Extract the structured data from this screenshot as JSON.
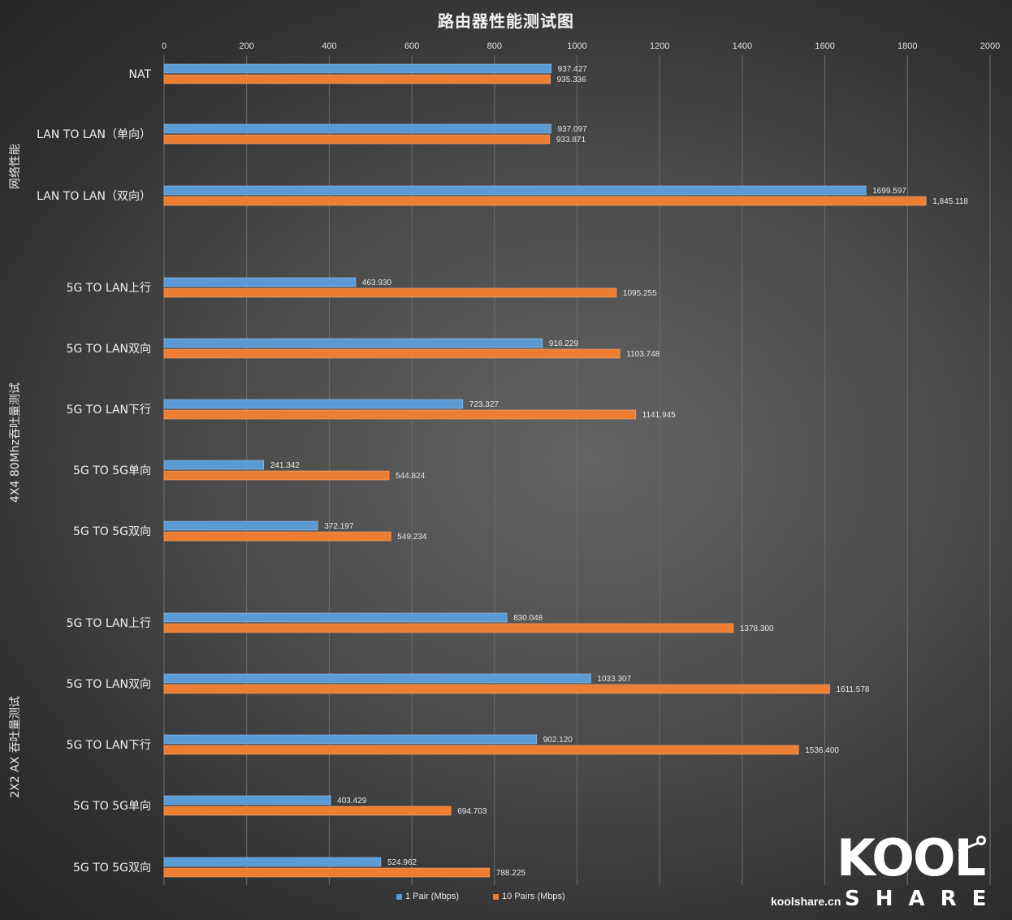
{
  "title": "路由器性能测试图",
  "chart_data": {
    "type": "bar",
    "orientation": "horizontal",
    "title": "路由器性能测试图",
    "xlim": [
      0,
      2000
    ],
    "ticks": [
      "0",
      "200",
      "400",
      "600",
      "800",
      "1000",
      "1200",
      "1400",
      "1600",
      "1800",
      "2000"
    ],
    "grid": true,
    "legend_position": "bottom",
    "groups": [
      {
        "label": "网络性能",
        "categories": [
          "NAT",
          "LAN TO LAN（单向）",
          "LAN TO LAN（双向）"
        ]
      },
      {
        "label": "4X4 80Mhz吞吐量测试",
        "categories": [
          "5G TO LAN上行",
          "5G TO LAN双向",
          "5G TO LAN下行",
          "5G TO 5G单向",
          "5G TO 5G双向"
        ]
      },
      {
        "label": "2X2 AX 吞吐量测试",
        "categories": [
          "5G TO LAN上行",
          "5G TO LAN双向",
          "5G TO LAN下行",
          "5G TO 5G单向",
          "5G TO 5G双向"
        ]
      }
    ],
    "series": [
      {
        "name": "1 Pair (Mbps)",
        "color": "#5b9bd5",
        "values": [
          937.427,
          937.097,
          1699.597,
          463.93,
          916.229,
          723.327,
          241.342,
          372.197,
          830.048,
          1033.307,
          902.12,
          403.429,
          524.962
        ],
        "labels": [
          "937.427",
          "937.097",
          "1699.597",
          "463.930",
          "916.229",
          "723.327",
          "241.342",
          "372.197",
          "830.048",
          "1033.307",
          "902.120",
          "403.429",
          "524.962"
        ]
      },
      {
        "name": "10  Pairs  (Mbps)",
        "color": "#ed7d31",
        "values": [
          935.336,
          933.871,
          1845.118,
          1095.255,
          1103.748,
          1141.945,
          544.824,
          549.234,
          1378.3,
          1611.578,
          1536.4,
          694.703,
          788.225
        ],
        "labels": [
          "935.336",
          "933.871",
          "1,845.118",
          "1095.255",
          "1103.748",
          "1141.945",
          "544.824",
          "549.234",
          "1378.300",
          "1611.578",
          "1536.400",
          "694.703",
          "788.225"
        ]
      }
    ]
  },
  "brand": {
    "logo_text": "KOOL",
    "sub_text": "SHARE",
    "site": "koolshare.cn"
  }
}
